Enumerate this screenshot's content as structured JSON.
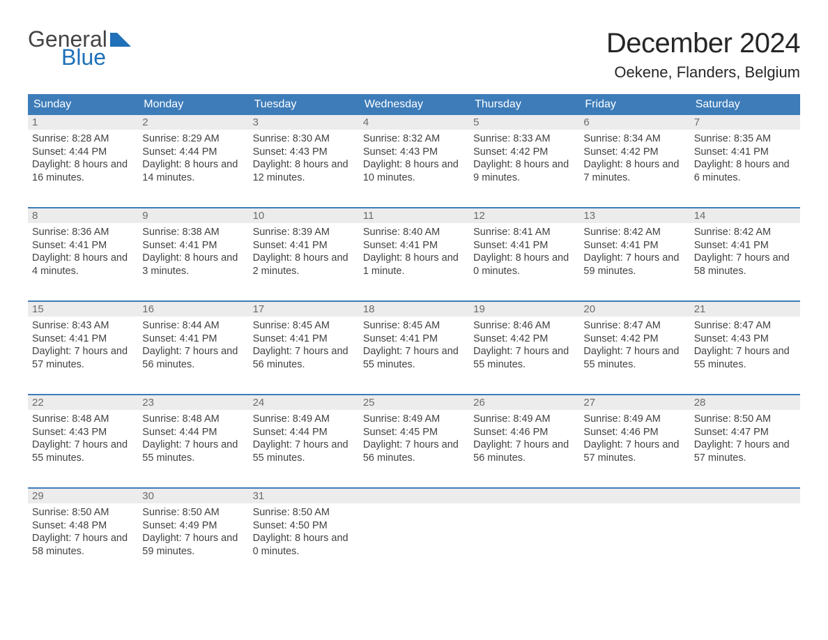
{
  "brand": {
    "word1": "General",
    "word2": "Blue"
  },
  "title": "December 2024",
  "location": "Oekene, Flanders, Belgium",
  "colors": {
    "header_bg": "#3d7cb9",
    "header_text": "#ffffff",
    "daynum_bg": "#ececec",
    "daynum_text": "#6b6b6b",
    "body_text": "#414141",
    "accent_blue": "#1f70b8",
    "page_bg": "#ffffff"
  },
  "weekdays": [
    "Sunday",
    "Monday",
    "Tuesday",
    "Wednesday",
    "Thursday",
    "Friday",
    "Saturday"
  ],
  "labels": {
    "sunrise": "Sunrise:",
    "sunset": "Sunset:",
    "daylight": "Daylight:"
  },
  "days": [
    {
      "n": "1",
      "sunrise": "8:28 AM",
      "sunset": "4:44 PM",
      "daylight": "8 hours and 16 minutes."
    },
    {
      "n": "2",
      "sunrise": "8:29 AM",
      "sunset": "4:44 PM",
      "daylight": "8 hours and 14 minutes."
    },
    {
      "n": "3",
      "sunrise": "8:30 AM",
      "sunset": "4:43 PM",
      "daylight": "8 hours and 12 minutes."
    },
    {
      "n": "4",
      "sunrise": "8:32 AM",
      "sunset": "4:43 PM",
      "daylight": "8 hours and 10 minutes."
    },
    {
      "n": "5",
      "sunrise": "8:33 AM",
      "sunset": "4:42 PM",
      "daylight": "8 hours and 9 minutes."
    },
    {
      "n": "6",
      "sunrise": "8:34 AM",
      "sunset": "4:42 PM",
      "daylight": "8 hours and 7 minutes."
    },
    {
      "n": "7",
      "sunrise": "8:35 AM",
      "sunset": "4:41 PM",
      "daylight": "8 hours and 6 minutes."
    },
    {
      "n": "8",
      "sunrise": "8:36 AM",
      "sunset": "4:41 PM",
      "daylight": "8 hours and 4 minutes."
    },
    {
      "n": "9",
      "sunrise": "8:38 AM",
      "sunset": "4:41 PM",
      "daylight": "8 hours and 3 minutes."
    },
    {
      "n": "10",
      "sunrise": "8:39 AM",
      "sunset": "4:41 PM",
      "daylight": "8 hours and 2 minutes."
    },
    {
      "n": "11",
      "sunrise": "8:40 AM",
      "sunset": "4:41 PM",
      "daylight": "8 hours and 1 minute."
    },
    {
      "n": "12",
      "sunrise": "8:41 AM",
      "sunset": "4:41 PM",
      "daylight": "8 hours and 0 minutes."
    },
    {
      "n": "13",
      "sunrise": "8:42 AM",
      "sunset": "4:41 PM",
      "daylight": "7 hours and 59 minutes."
    },
    {
      "n": "14",
      "sunrise": "8:42 AM",
      "sunset": "4:41 PM",
      "daylight": "7 hours and 58 minutes."
    },
    {
      "n": "15",
      "sunrise": "8:43 AM",
      "sunset": "4:41 PM",
      "daylight": "7 hours and 57 minutes."
    },
    {
      "n": "16",
      "sunrise": "8:44 AM",
      "sunset": "4:41 PM",
      "daylight": "7 hours and 56 minutes."
    },
    {
      "n": "17",
      "sunrise": "8:45 AM",
      "sunset": "4:41 PM",
      "daylight": "7 hours and 56 minutes."
    },
    {
      "n": "18",
      "sunrise": "8:45 AM",
      "sunset": "4:41 PM",
      "daylight": "7 hours and 55 minutes."
    },
    {
      "n": "19",
      "sunrise": "8:46 AM",
      "sunset": "4:42 PM",
      "daylight": "7 hours and 55 minutes."
    },
    {
      "n": "20",
      "sunrise": "8:47 AM",
      "sunset": "4:42 PM",
      "daylight": "7 hours and 55 minutes."
    },
    {
      "n": "21",
      "sunrise": "8:47 AM",
      "sunset": "4:43 PM",
      "daylight": "7 hours and 55 minutes."
    },
    {
      "n": "22",
      "sunrise": "8:48 AM",
      "sunset": "4:43 PM",
      "daylight": "7 hours and 55 minutes."
    },
    {
      "n": "23",
      "sunrise": "8:48 AM",
      "sunset": "4:44 PM",
      "daylight": "7 hours and 55 minutes."
    },
    {
      "n": "24",
      "sunrise": "8:49 AM",
      "sunset": "4:44 PM",
      "daylight": "7 hours and 55 minutes."
    },
    {
      "n": "25",
      "sunrise": "8:49 AM",
      "sunset": "4:45 PM",
      "daylight": "7 hours and 56 minutes."
    },
    {
      "n": "26",
      "sunrise": "8:49 AM",
      "sunset": "4:46 PM",
      "daylight": "7 hours and 56 minutes."
    },
    {
      "n": "27",
      "sunrise": "8:49 AM",
      "sunset": "4:46 PM",
      "daylight": "7 hours and 57 minutes."
    },
    {
      "n": "28",
      "sunrise": "8:50 AM",
      "sunset": "4:47 PM",
      "daylight": "7 hours and 57 minutes."
    },
    {
      "n": "29",
      "sunrise": "8:50 AM",
      "sunset": "4:48 PM",
      "daylight": "7 hours and 58 minutes."
    },
    {
      "n": "30",
      "sunrise": "8:50 AM",
      "sunset": "4:49 PM",
      "daylight": "7 hours and 59 minutes."
    },
    {
      "n": "31",
      "sunrise": "8:50 AM",
      "sunset": "4:50 PM",
      "daylight": "8 hours and 0 minutes."
    }
  ],
  "layout": {
    "start_weekday_index": 0,
    "total_cells": 35,
    "fontsize_title": 40,
    "fontsize_location": 22,
    "fontsize_weekday": 16,
    "fontsize_body": 14.5
  }
}
